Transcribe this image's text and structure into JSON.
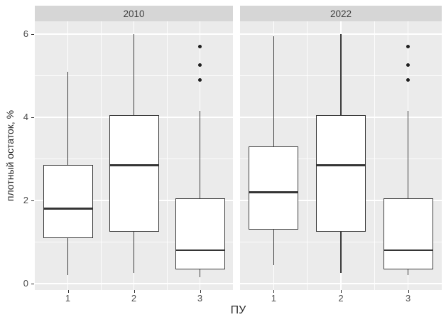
{
  "chart_data": {
    "type": "boxplot",
    "title": "",
    "xlabel": "ПУ",
    "ylabel": "плотный остаток, %",
    "ylim": [
      -0.15,
      6.3
    ],
    "y_major_ticks": [
      0,
      2,
      4,
      6
    ],
    "y_minor_ticks": [
      1,
      3,
      5
    ],
    "categories": [
      "1",
      "2",
      "3"
    ],
    "grid": true,
    "legend_position": "none",
    "facets": [
      {
        "label": "2010",
        "boxes": [
          {
            "category": "1",
            "whisker_low": 0.2,
            "q1": 1.1,
            "median": 1.8,
            "q3": 2.85,
            "whisker_high": 5.1,
            "outliers": []
          },
          {
            "category": "2",
            "whisker_low": 0.25,
            "q1": 1.25,
            "median": 2.85,
            "q3": 4.05,
            "whisker_high": 6.0,
            "outliers": []
          },
          {
            "category": "3",
            "whisker_low": 0.15,
            "q1": 0.35,
            "median": 0.8,
            "q3": 2.05,
            "whisker_high": 4.15,
            "outliers": [
              4.9,
              5.25,
              5.7
            ]
          }
        ]
      },
      {
        "label": "2022",
        "boxes": [
          {
            "category": "1",
            "whisker_low": 0.45,
            "q1": 1.3,
            "median": 2.2,
            "q3": 3.3,
            "whisker_high": 5.95,
            "outliers": []
          },
          {
            "category": "2",
            "whisker_low": 0.25,
            "q1": 1.25,
            "median": 2.85,
            "q3": 4.05,
            "whisker_high": 6.0,
            "outliers": []
          },
          {
            "category": "3",
            "whisker_low": 0.2,
            "q1": 0.35,
            "median": 0.8,
            "q3": 2.05,
            "whisker_high": 4.15,
            "outliers": [
              4.9,
              5.25,
              5.7
            ]
          }
        ]
      }
    ]
  },
  "colors": {
    "panel_background": "#ebebeb",
    "strip_background": "#d6d6d6",
    "gridline": "#ffffff",
    "box_outline": "#3b3b3b",
    "box_fill": "#ffffff",
    "outlier": "#1f1f1f",
    "tick_label": "#4d4d4d",
    "axis_title": "#2b2b2b"
  }
}
